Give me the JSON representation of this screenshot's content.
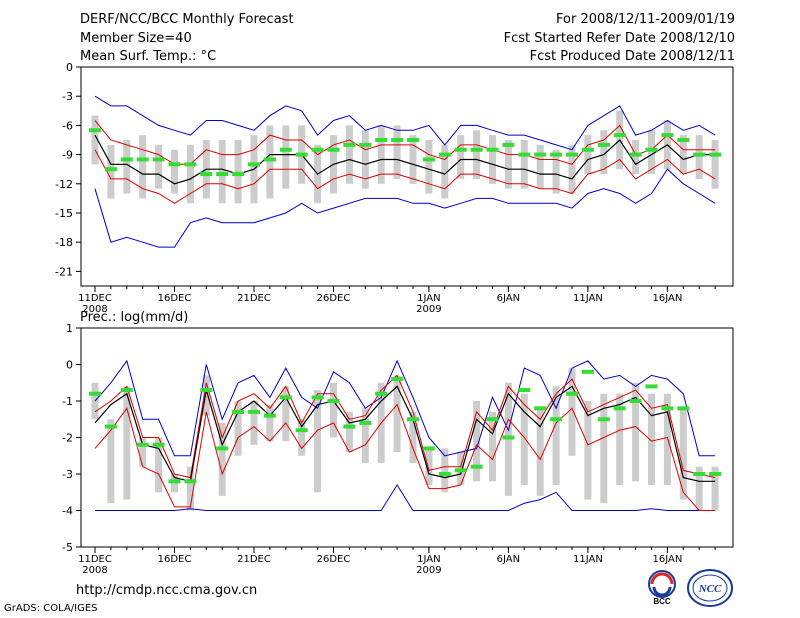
{
  "header": {
    "title": "DERF/NCC/BCC Monthly Forecast",
    "member_size": "Member Size=40",
    "for_period": "For 2008/12/11-2009/01/19",
    "fcst_started": "Fcst Started Refer Date 2008/12/10",
    "fcst_produced": "Fcst Produced Date 2008/12/11"
  },
  "footer": {
    "url": "http://cmdp.ncc.cma.gov.cn",
    "grads": "GrADS: COLA/IGES",
    "logo_left": "BCC",
    "logo_right": "NCC"
  },
  "colors": {
    "ens_max_min": "#0000cc",
    "ens_spread": "#dd0000",
    "ens_mean": "#000000",
    "box": "#cccccc",
    "marker": "#33dd33"
  },
  "chart_data": [
    {
      "type": "line",
      "title": "Mean Surf. Temp.: °C",
      "x_ticks": [
        "11DEC",
        "16DEC",
        "21DEC",
        "26DEC",
        "1JAN",
        "6JAN",
        "11JAN",
        "16JAN"
      ],
      "x_tick_days": [
        0,
        5,
        10,
        15,
        21,
        26,
        31,
        36
      ],
      "x_year_labels": [
        {
          "day": 0,
          "label": "2008"
        },
        {
          "day": 21,
          "label": "2009"
        }
      ],
      "y_ticks": [
        0,
        -3,
        -6,
        -9,
        -12,
        -15,
        -18,
        -21
      ],
      "ylim": [
        -22.5,
        0
      ],
      "days": 40,
      "series": [
        {
          "name": "max",
          "values": [
            -3,
            -4,
            -4,
            -5,
            -6,
            -6.5,
            -7,
            -5.5,
            -5.5,
            -6,
            -6.5,
            -5,
            -4,
            -4.5,
            -7,
            -5.5,
            -5,
            -6.5,
            -6,
            -6.5,
            -6.5,
            -6,
            -8,
            -6,
            -6,
            -6.5,
            -7,
            -7,
            -7.5,
            -8,
            -8.5,
            -6,
            -5,
            -4,
            -7,
            -6.5,
            -5.5,
            -6.5,
            -6,
            -7
          ]
        },
        {
          "name": "upper",
          "values": [
            -5.5,
            -7.5,
            -8,
            -8.5,
            -9,
            -10,
            -10,
            -8.5,
            -9,
            -9,
            -8.5,
            -7,
            -7.5,
            -7.5,
            -9,
            -8,
            -7.5,
            -8.5,
            -8,
            -8,
            -8,
            -9,
            -9.5,
            -8,
            -8,
            -8.5,
            -9,
            -9,
            -9.5,
            -9.5,
            -10,
            -8,
            -7.5,
            -6,
            -9,
            -8.5,
            -7,
            -8.5,
            -8.5,
            -8.5
          ]
        },
        {
          "name": "mean",
          "values": [
            -7,
            -10,
            -10,
            -11,
            -11,
            -12,
            -11.5,
            -10.5,
            -10.5,
            -11,
            -10.5,
            -9,
            -9,
            -9,
            -11,
            -10,
            -9.5,
            -10,
            -9.5,
            -9.5,
            -10,
            -10.5,
            -11,
            -9.5,
            -9.5,
            -10,
            -10.5,
            -10.5,
            -11,
            -11,
            -11.5,
            -9.5,
            -9,
            -7.5,
            -10,
            -9,
            -8,
            -9.5,
            -9,
            -9
          ]
        },
        {
          "name": "lower",
          "values": [
            -8.5,
            -11.5,
            -11.5,
            -12.5,
            -13,
            -14,
            -13,
            -12,
            -12,
            -12.5,
            -12,
            -10.5,
            -10.5,
            -10.5,
            -12.5,
            -11.5,
            -11,
            -11.5,
            -11,
            -11,
            -11.5,
            -12,
            -12.5,
            -11,
            -11,
            -11.5,
            -12,
            -12,
            -12.5,
            -12.5,
            -13,
            -11,
            -10.5,
            -9.5,
            -11.5,
            -10.5,
            -9.5,
            -11,
            -10.5,
            -11.5
          ]
        },
        {
          "name": "min",
          "values": [
            -12.5,
            -18,
            -17.5,
            -18,
            -18.5,
            -18.5,
            -16,
            -15.5,
            -16,
            -16,
            -16,
            -15.5,
            -15,
            -14,
            -15,
            -14.5,
            -14,
            -13.5,
            -13.5,
            -13.5,
            -14,
            -14,
            -14.5,
            -14,
            -13.5,
            -13.5,
            -14,
            -14,
            -14,
            -14,
            -14.5,
            -13,
            -12.5,
            -13,
            -14,
            -13,
            -10.5,
            -12,
            -13,
            -14
          ]
        },
        {
          "name": "marker",
          "values": [
            -6.5,
            -10.5,
            -9.5,
            -9.5,
            -9.5,
            -10,
            -10,
            -11,
            -11,
            -11,
            -10,
            -9.5,
            -8.5,
            -9,
            -8.5,
            -8.5,
            -8,
            -8,
            -7.5,
            -7.5,
            -7.5,
            -9.5,
            -9,
            -8.5,
            -8.5,
            -8.5,
            -8,
            -9,
            -9,
            -9,
            -9,
            -8.5,
            -8,
            -7,
            -9,
            -8.5,
            -7,
            -7.5,
            -9,
            -9
          ]
        },
        {
          "name": "box_top",
          "values": [
            -5,
            -8,
            -7.5,
            -7,
            -8,
            -8.5,
            -8,
            -7.5,
            -7.5,
            -7.5,
            -7,
            -6,
            -6,
            -6,
            -8,
            -7,
            -6,
            -6.5,
            -6,
            -6,
            -7,
            -7.5,
            -8,
            -7,
            -6.5,
            -7,
            -7.5,
            -7.5,
            -8,
            -8.5,
            -8,
            -7,
            -6.5,
            -4.5,
            -7.5,
            -6.5,
            -5.5,
            -7,
            -7,
            -7.5
          ]
        },
        {
          "name": "box_bottom",
          "values": [
            -10,
            -13.5,
            -13,
            -13.5,
            -12.5,
            -13,
            -14,
            -13.5,
            -14,
            -14,
            -14,
            -13.5,
            -12.5,
            -12,
            -14,
            -13,
            -12,
            -12.5,
            -12,
            -11.5,
            -12,
            -13,
            -13.5,
            -11.5,
            -11.5,
            -12,
            -12.5,
            -12.5,
            -12.5,
            -13,
            -13,
            -11,
            -11,
            -10.5,
            -11,
            -11,
            -10.5,
            -11,
            -11.5,
            -12.5
          ]
        }
      ]
    },
    {
      "type": "line",
      "title": "Prec.: log(mm/d)",
      "x_ticks": [
        "11DEC",
        "16DEC",
        "21DEC",
        "26DEC",
        "1JAN",
        "6JAN",
        "11JAN",
        "16JAN"
      ],
      "x_tick_days": [
        0,
        5,
        10,
        15,
        21,
        26,
        31,
        36
      ],
      "x_year_labels": [
        {
          "day": 0,
          "label": "2008"
        },
        {
          "day": 21,
          "label": "2009"
        }
      ],
      "y_ticks": [
        1,
        0,
        -1,
        -2,
        -3,
        -4,
        -5
      ],
      "ylim": [
        -5,
        1
      ],
      "days": 40,
      "series": [
        {
          "name": "max",
          "values": [
            -1,
            -0.5,
            0.1,
            -1.5,
            -1.5,
            -2.5,
            -2.5,
            0,
            -1.5,
            -0.5,
            -0.3,
            -0.9,
            -0.1,
            -0.9,
            -1.2,
            -0.2,
            -0.5,
            -1.2,
            -0.9,
            0.1,
            -0.9,
            -2,
            -2.5,
            -2.4,
            -2.3,
            -0.9,
            -1.8,
            -0.1,
            -0.3,
            -1.2,
            -0.1,
            0.1,
            -0.4,
            -0.3,
            -0.6,
            -0.3,
            -0.4,
            -0.8,
            -2.5,
            -2.5
          ]
        },
        {
          "name": "upper",
          "values": [
            -1.3,
            -1,
            -0.6,
            -2,
            -2,
            -3,
            -3.1,
            -0.5,
            -2,
            -1,
            -0.8,
            -1.2,
            -0.6,
            -1.6,
            -0.8,
            -0.8,
            -1.5,
            -1.4,
            -0.7,
            -0.3,
            -1.3,
            -2.9,
            -2.8,
            -2.8,
            -1.3,
            -1.8,
            -0.6,
            -1.1,
            -1.5,
            -0.8,
            -0.4,
            -1.3,
            -1.1,
            -0.9,
            -0.7,
            -1.2,
            -1.1,
            -2.9,
            -3,
            -3.1
          ]
        },
        {
          "name": "mean",
          "values": [
            -1.6,
            -1.1,
            -0.8,
            -2.2,
            -2.3,
            -3.1,
            -3.2,
            -0.7,
            -2.2,
            -1.3,
            -1,
            -1.4,
            -0.9,
            -1.7,
            -1.1,
            -1,
            -1.6,
            -1.5,
            -1,
            -0.6,
            -1.5,
            -3,
            -3.1,
            -3,
            -1.5,
            -1.9,
            -0.8,
            -1.3,
            -1.7,
            -0.9,
            -0.6,
            -1.4,
            -1.2,
            -1.1,
            -0.9,
            -1.4,
            -1.3,
            -3.1,
            -3.2,
            -3.2
          ]
        },
        {
          "name": "lower",
          "values": [
            -2.3,
            -1.8,
            -1.2,
            -2.8,
            -3,
            -3.9,
            -3.9,
            -1.3,
            -3,
            -2,
            -1.7,
            -2.1,
            -1.6,
            -2.3,
            -1.8,
            -1.6,
            -2.4,
            -2.2,
            -1.6,
            -1.1,
            -2.3,
            -3.4,
            -3.4,
            -3.3,
            -2.2,
            -2.6,
            -1.5,
            -2,
            -2.6,
            -1.6,
            -1.2,
            -2.2,
            -2,
            -1.8,
            -1.7,
            -2.1,
            -2,
            -3.5,
            -4,
            -4
          ]
        },
        {
          "name": "min",
          "values": [
            -4,
            -4,
            -4,
            -4,
            -4,
            -4,
            -3.95,
            -4,
            -4,
            -4,
            -4,
            -4,
            -4,
            -4,
            -4,
            -4,
            -4,
            -4,
            -4,
            -3.3,
            -4,
            -4,
            -4,
            -4,
            -4,
            -4,
            -4,
            -3.8,
            -3.7,
            -3.5,
            -4,
            -4,
            -4,
            -4,
            -4,
            -3.95,
            -4,
            -4,
            -4,
            -4
          ]
        },
        {
          "name": "marker",
          "values": [
            -0.8,
            -1.7,
            -0.7,
            -2.2,
            -2.2,
            -3.2,
            -3.2,
            -0.7,
            -2.3,
            -1.3,
            -1.3,
            -1.4,
            -0.9,
            -1.8,
            -0.9,
            -1,
            -1.7,
            -1.6,
            -0.8,
            -0.4,
            -1.5,
            -2.3,
            -3,
            -2.9,
            -2.8,
            -1.5,
            -2,
            -0.7,
            -1.2,
            -1.5,
            -0.8,
            -0.2,
            -1.5,
            -1.2,
            -1,
            -0.6,
            -1.2,
            -1.2,
            -3,
            -3
          ]
        },
        {
          "name": "box_top",
          "values": [
            -0.5,
            -1.5,
            -0.6,
            -2,
            -2,
            -3,
            -2.8,
            -0.3,
            -1.6,
            -1,
            -1,
            -1.1,
            -0.6,
            -1.5,
            -0.7,
            -0.5,
            -1.3,
            -1.2,
            -0.5,
            -0.3,
            -1.3,
            -2.3,
            -2.3,
            -2.4,
            -1,
            -1.3,
            -0.5,
            -0.8,
            -1.2,
            -0.6,
            -0.1,
            -1,
            -0.8,
            -0.8,
            -0.5,
            -0.8,
            -0.8,
            -1.2,
            -2.8,
            -2.8
          ]
        },
        {
          "name": "box_bottom",
          "values": [
            -1.5,
            -3.8,
            -3.7,
            -2.8,
            -3.5,
            -3.5,
            -4,
            -1.4,
            -3.6,
            -2.5,
            -2.2,
            -2.1,
            -2.1,
            -2.5,
            -3.5,
            -2,
            -2.4,
            -2.7,
            -2.7,
            -2.4,
            -2.7,
            -3.3,
            -3.5,
            -3.3,
            -3.2,
            -3.2,
            -3.6,
            -3.3,
            -3.6,
            -3.3,
            -2.5,
            -3.7,
            -3.8,
            -3.3,
            -3.2,
            -3.3,
            -3.3,
            -3.7,
            -4,
            -4
          ]
        }
      ]
    }
  ]
}
